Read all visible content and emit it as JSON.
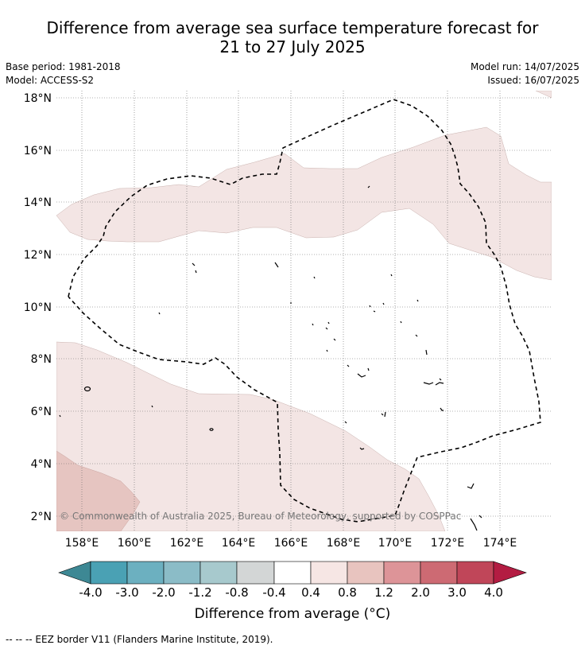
{
  "title": {
    "line1": "Difference from average sea surface temperature forecast for",
    "line2": "21 to 27 July 2025"
  },
  "meta": {
    "base_period": "Base period: 1981-2018",
    "model": "Model: ACCESS-S2",
    "model_run": "Model run: 14/07/2025",
    "issued": "Issued: 16/07/2025"
  },
  "map": {
    "lat_ticks": [
      "18°N",
      "16°N",
      "14°N",
      "12°N",
      "10°N",
      "8°N",
      "6°N",
      "4°N",
      "2°N"
    ],
    "lon_ticks": [
      "158°E",
      "160°E",
      "162°E",
      "164°E",
      "166°E",
      "168°E",
      "170°E",
      "172°E",
      "174°E"
    ],
    "copyright": "© Commonwealth of Australia 2025, Bureau of Meteorology, supported by COSPPac",
    "layers": [
      "0.4 to 0.8 anomaly shading",
      "0.8 to 1.2 anomaly shading",
      "EEZ border",
      "islands"
    ]
  },
  "colorbar": {
    "labels": [
      "-4.0",
      "-3.0",
      "-2.0",
      "-1.2",
      "-0.8",
      "-0.4",
      "0.4",
      "0.8",
      "1.2",
      "2.0",
      "3.0",
      "4.0"
    ],
    "colors": [
      "#4aa1b4",
      "#6cb0c0",
      "#8bbcc7",
      "#a7c9cd",
      "#d3d6d6",
      "#ffffff",
      "#f6e6e4",
      "#e8c4bf",
      "#dd9498",
      "#cd6a73",
      "#c04659"
    ],
    "low_extend_color": "#3d8894",
    "high_extend_color": "#b31c42",
    "title": "Difference from average (°C)"
  },
  "footer": "-- -- -- EEZ border V11 (Flanders Marine Institute, 2019)."
}
